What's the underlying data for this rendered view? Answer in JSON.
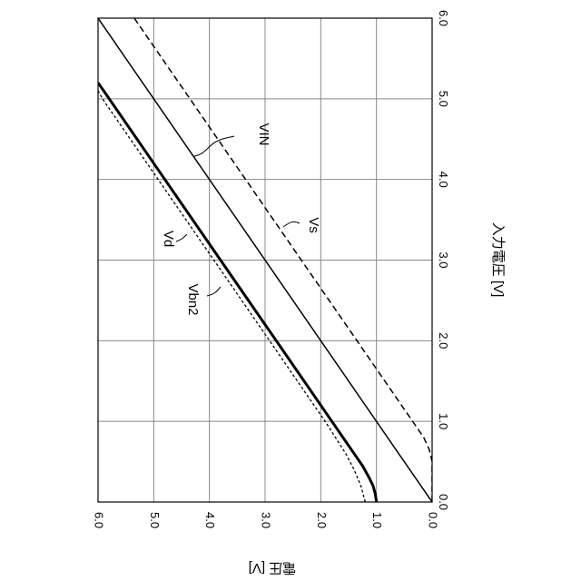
{
  "chart_data": {
    "type": "line",
    "orientation": "rotated-90-clockwise",
    "xlabel": "入力電圧 [V]",
    "ylabel": "電圧 [V]",
    "xlim": [
      0.0,
      6.0
    ],
    "ylim": [
      0.0,
      6.0
    ],
    "x_ticks": [
      "0.0",
      "1.0",
      "2.0",
      "3.0",
      "4.0",
      "5.0",
      "6.0"
    ],
    "y_ticks": [
      "0.0",
      "1.0",
      "2.0",
      "3.0",
      "4.0",
      "5.0",
      "6.0"
    ],
    "grid": true,
    "series": [
      {
        "name": "VIN",
        "style": "solid-thin",
        "x": [
          0.0,
          6.0
        ],
        "y": [
          0.0,
          6.0
        ]
      },
      {
        "name": "Vs",
        "style": "dashed",
        "x": [
          0.0,
          0.5,
          0.65,
          0.8,
          6.0
        ],
        "y": [
          0.0,
          0.0,
          0.05,
          0.15,
          5.35
        ]
      },
      {
        "name": "Vd",
        "style": "solid-thick",
        "x": [
          0.0,
          0.1,
          0.2,
          0.3,
          0.45,
          0.6,
          1.0,
          2.0,
          3.0,
          4.0,
          5.0,
          5.2
        ],
        "y": [
          1.0,
          1.02,
          1.06,
          1.13,
          1.25,
          1.4,
          1.8,
          2.8,
          3.8,
          4.8,
          5.8,
          6.0
        ]
      },
      {
        "name": "Vbn2",
        "style": "dotted",
        "x": [
          0.0,
          0.2,
          0.4,
          0.6,
          1.0,
          2.0,
          3.0,
          4.0,
          5.0,
          5.1
        ],
        "y": [
          1.2,
          1.28,
          1.4,
          1.55,
          1.92,
          2.92,
          3.92,
          4.92,
          5.92,
          6.0
        ]
      }
    ],
    "annotations": [
      {
        "label": "VIN",
        "text": "VIN"
      },
      {
        "label": "Vs",
        "text": "Vs"
      },
      {
        "label": "Vd",
        "text": "Vd"
      },
      {
        "label": "Vbn2",
        "text": "Vbn2"
      }
    ]
  }
}
